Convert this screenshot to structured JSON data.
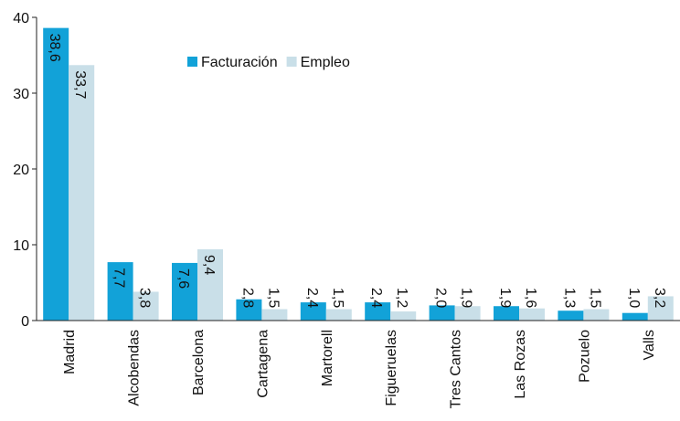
{
  "chart_data": {
    "type": "bar",
    "categories": [
      "Madrid",
      "Alcobendas",
      "Barcelona",
      "Cartagena",
      "Martorell",
      "Figueruelas",
      "Tres Cantos",
      "Las Rozas",
      "Pozuelo",
      "Valls"
    ],
    "series": [
      {
        "name": "Facturación",
        "color": "#12a2d8",
        "values": [
          38.6,
          7.7,
          7.6,
          2.8,
          2.4,
          2.4,
          2.0,
          1.9,
          1.3,
          1.0
        ],
        "value_labels": [
          "38,6",
          "7,7",
          "7,6",
          "2,8",
          "2,4",
          "2,4",
          "2,0",
          "1,9",
          "1,3",
          "1,0"
        ]
      },
      {
        "name": "Empleo",
        "color": "#c9dfe8",
        "values": [
          33.7,
          3.8,
          9.4,
          1.5,
          1.5,
          1.2,
          1.9,
          1.6,
          1.5,
          3.2
        ],
        "value_labels": [
          "33,7",
          "3,8",
          "9,4",
          "1,5",
          "1,5",
          "1,2",
          "1,9",
          "1,6",
          "1,5",
          "3,2"
        ]
      }
    ],
    "ylim": [
      0,
      40
    ],
    "yticks": [
      0,
      10,
      20,
      30,
      40
    ],
    "legend": "top"
  }
}
